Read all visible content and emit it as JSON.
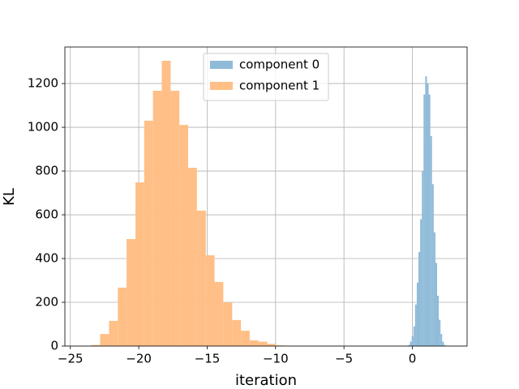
{
  "chart_data": {
    "type": "histogram",
    "xlabel": "iteration",
    "ylabel": "KL",
    "xlim": [
      -25.4,
      4.0
    ],
    "ylim": [
      0,
      1367
    ],
    "xticks": [
      {
        "value": -25,
        "label": "−25"
      },
      {
        "value": -20,
        "label": "−20"
      },
      {
        "value": -15,
        "label": "−15"
      },
      {
        "value": -10,
        "label": "−10"
      },
      {
        "value": -5,
        "label": "−5"
      },
      0
    ],
    "yticks": [
      0,
      200,
      400,
      600,
      800,
      1000,
      1200
    ],
    "grid": true,
    "legend": "upper center",
    "series": [
      {
        "name": "component 0",
        "color": "#8fbbd9",
        "bins": [
          -0.3,
          -0.176,
          -0.052,
          0.072,
          0.196,
          0.32,
          0.444,
          0.568,
          0.692,
          0.816,
          0.94,
          1.064,
          1.188,
          1.312,
          1.436,
          1.56,
          1.684,
          1.808,
          1.932,
          2.056,
          2.18,
          2.304,
          2.428
        ],
        "values": [
          5,
          20,
          45,
          90,
          190,
          290,
          430,
          580,
          800,
          1150,
          1233,
          1200,
          1150,
          960,
          740,
          520,
          380,
          230,
          120,
          55,
          20,
          5
        ]
      },
      {
        "name": "component 1",
        "color": "#ffbf86",
        "bins": [
          -23.46,
          -22.82,
          -22.17,
          -21.53,
          -20.89,
          -20.24,
          -19.6,
          -18.96,
          -18.32,
          -17.67,
          -17.03,
          -16.39,
          -15.75,
          -15.1,
          -14.46,
          -13.82,
          -13.17,
          -12.53,
          -11.89,
          -11.25,
          -10.6,
          -9.96,
          -9.32
        ],
        "values": [
          5,
          55,
          115,
          267,
          489,
          748,
          1030,
          1167,
          1304,
          1167,
          1011,
          815,
          619,
          415,
          293,
          200,
          119,
          70,
          26,
          20,
          10,
          3
        ]
      }
    ]
  }
}
